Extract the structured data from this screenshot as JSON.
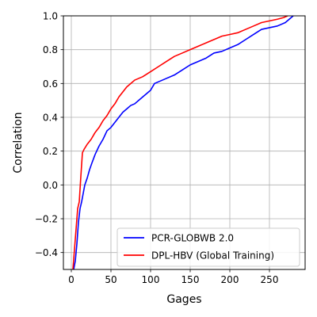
{
  "chart_data": {
    "type": "line",
    "title": "",
    "xlabel": "Gages",
    "ylabel": "Correlation",
    "xlim": [
      -10,
      295
    ],
    "ylim": [
      -0.5,
      1.0
    ],
    "xticks": [
      0,
      50,
      100,
      150,
      200,
      250
    ],
    "xtick_labels": [
      "0",
      "50",
      "100",
      "150",
      "200",
      "250"
    ],
    "yticks": [
      -0.4,
      -0.2,
      0.0,
      0.2,
      0.4,
      0.6,
      0.8,
      1.0
    ],
    "ytick_labels": [
      "−0.4",
      "−0.2",
      "0.0",
      "0.2",
      "0.4",
      "0.6",
      "0.8",
      "1.0"
    ],
    "grid": true,
    "legend_position": "lower-right",
    "series": [
      {
        "name": "PCR-GLOBWB 2.0",
        "color": "#0000ff",
        "x": [
          3,
          5,
          7,
          9,
          11,
          13,
          15,
          17,
          20,
          23,
          26,
          30,
          35,
          40,
          45,
          50,
          55,
          60,
          65,
          70,
          75,
          80,
          85,
          90,
          95,
          100,
          105,
          110,
          120,
          130,
          140,
          150,
          160,
          170,
          180,
          190,
          200,
          210,
          220,
          230,
          240,
          250,
          260,
          270,
          275,
          280
        ],
        "y": [
          -0.5,
          -0.45,
          -0.35,
          -0.22,
          -0.14,
          -0.1,
          -0.05,
          0.0,
          0.04,
          0.09,
          0.13,
          0.18,
          0.23,
          0.27,
          0.32,
          0.34,
          0.37,
          0.4,
          0.43,
          0.45,
          0.47,
          0.48,
          0.5,
          0.52,
          0.54,
          0.56,
          0.6,
          0.61,
          0.63,
          0.65,
          0.68,
          0.71,
          0.73,
          0.75,
          0.78,
          0.79,
          0.81,
          0.83,
          0.86,
          0.89,
          0.92,
          0.93,
          0.94,
          0.96,
          0.98,
          1.0
        ]
      },
      {
        "name": "DPL-HBV (Global Training)",
        "color": "#ff0000",
        "x": [
          2,
          4,
          6,
          8,
          10,
          12,
          14,
          16,
          20,
          25,
          30,
          35,
          40,
          45,
          50,
          55,
          60,
          65,
          70,
          75,
          80,
          90,
          100,
          110,
          120,
          130,
          140,
          150,
          160,
          170,
          180,
          190,
          200,
          210,
          220,
          230,
          240,
          250,
          260,
          268,
          273
        ],
        "y": [
          -0.5,
          -0.38,
          -0.26,
          -0.14,
          -0.1,
          0.05,
          0.19,
          0.21,
          0.24,
          0.27,
          0.31,
          0.34,
          0.38,
          0.41,
          0.45,
          0.48,
          0.52,
          0.55,
          0.58,
          0.6,
          0.62,
          0.64,
          0.67,
          0.7,
          0.73,
          0.76,
          0.78,
          0.8,
          0.82,
          0.84,
          0.86,
          0.88,
          0.89,
          0.9,
          0.92,
          0.94,
          0.96,
          0.97,
          0.98,
          0.99,
          1.0
        ]
      }
    ]
  }
}
